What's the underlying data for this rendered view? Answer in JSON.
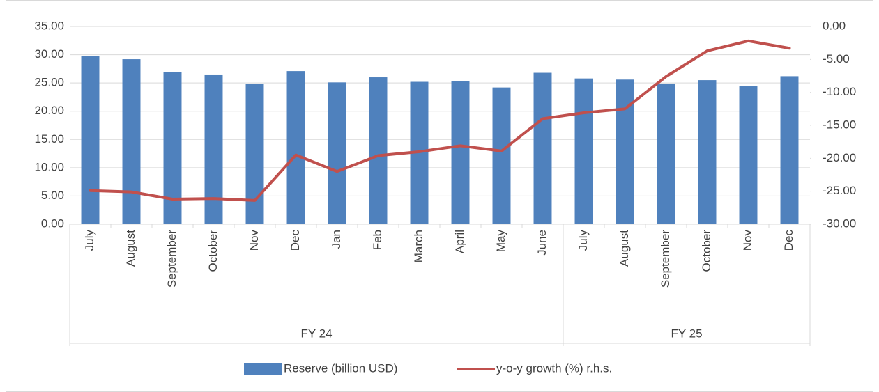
{
  "chart_data": {
    "type": "bar-line",
    "groups": [
      {
        "name": "FY 24",
        "categories": [
          "July",
          "August",
          "September",
          "October",
          "Nov",
          "Dec",
          "Jan",
          "Feb",
          "March",
          "April",
          "May",
          "June"
        ]
      },
      {
        "name": "FY 25",
        "categories": [
          "July",
          "August",
          "September",
          "October",
          "Nov",
          "Dec"
        ]
      }
    ],
    "series": [
      {
        "name": "Reserve (billion USD)",
        "type": "bar",
        "color": "#4f81bd",
        "axis": "y",
        "values": [
          29.7,
          29.2,
          26.9,
          26.5,
          24.8,
          27.1,
          25.1,
          26.0,
          25.2,
          25.3,
          24.2,
          26.8,
          25.8,
          25.6,
          24.9,
          25.5,
          24.4,
          26.2
        ]
      },
      {
        "name": "y-o-y growth (%) r.h.s.",
        "type": "line",
        "color": "#c0504d",
        "axis": "y2",
        "values": [
          -24.9,
          -25.1,
          -26.2,
          -26.1,
          -26.4,
          -19.5,
          -22.0,
          -19.6,
          -19.0,
          -18.1,
          -18.9,
          -14.0,
          -13.1,
          -12.5,
          -7.6,
          -3.7,
          -2.2,
          -3.3
        ]
      }
    ],
    "ylim": [
      0,
      35
    ],
    "yticks": [
      {
        "value": 0,
        "label": "0.00"
      },
      {
        "value": 5,
        "label": "5.00"
      },
      {
        "value": 10,
        "label": "10.00"
      },
      {
        "value": 15,
        "label": "15.00"
      },
      {
        "value": 20,
        "label": "20.00"
      },
      {
        "value": 25,
        "label": "25.00"
      },
      {
        "value": 30,
        "label": "30.00"
      },
      {
        "value": 35,
        "label": "35.00"
      }
    ],
    "y2lim": [
      -30,
      0
    ],
    "y2ticks": [
      {
        "value": -30,
        "label": "-30.00"
      },
      {
        "value": -25,
        "label": "-25.00"
      },
      {
        "value": -20,
        "label": "-20.00"
      },
      {
        "value": -15,
        "label": "-15.00"
      },
      {
        "value": -10,
        "label": "-10.00"
      },
      {
        "value": -5,
        "label": "-5.00"
      },
      {
        "value": 0,
        "label": "0.00"
      }
    ],
    "grid": true,
    "legend": "bottom"
  }
}
